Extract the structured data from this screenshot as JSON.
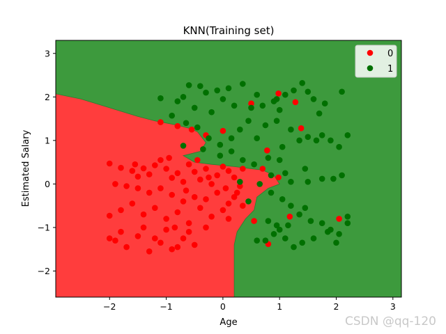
{
  "chart_data": {
    "type": "scatter",
    "title": "KNN(Training set)",
    "xlabel": "Age",
    "ylabel": "Estimated Salary",
    "xlim": [
      -2.95,
      3.15
    ],
    "ylim": [
      -2.6,
      3.3
    ],
    "xticks": [
      -2,
      -1,
      0,
      1,
      2,
      3
    ],
    "yticks": [
      -2,
      -1,
      0,
      1,
      2,
      3
    ],
    "grid": false,
    "legend_position": "top-right",
    "region_colors": {
      "0": "#ff3d3d",
      "1": "#3d9a3d"
    },
    "point_colors": {
      "0": "#ff0000",
      "1": "#007000"
    },
    "boundary": [
      [
        -2.95,
        2.07
      ],
      [
        -2.5,
        1.95
      ],
      [
        -2.0,
        1.75
      ],
      [
        -1.5,
        1.55
      ],
      [
        -1.2,
        1.45
      ],
      [
        -1.0,
        1.4
      ],
      [
        -0.8,
        1.35
      ],
      [
        -0.6,
        1.28
      ],
      [
        -0.45,
        1.2
      ],
      [
        -0.3,
        0.95
      ],
      [
        -0.4,
        0.75
      ],
      [
        -0.7,
        0.65
      ],
      [
        -0.5,
        0.5
      ],
      [
        -0.2,
        0.45
      ],
      [
        0.2,
        0.4
      ],
      [
        0.5,
        0.35
      ],
      [
        0.7,
        0.32
      ],
      [
        0.9,
        0.2
      ],
      [
        1.0,
        0.0
      ],
      [
        0.8,
        -0.1
      ],
      [
        0.6,
        -0.3
      ],
      [
        0.55,
        -0.6
      ],
      [
        0.4,
        -0.8
      ],
      [
        0.25,
        -1.1
      ],
      [
        0.2,
        -1.4
      ],
      [
        0.2,
        -2.6
      ]
    ],
    "series": [
      {
        "name": "0",
        "points": [
          [
            -2.0,
            0.47
          ],
          [
            -1.8,
            0.37
          ],
          [
            -1.6,
            0.3
          ],
          [
            -1.5,
            0.17
          ],
          [
            -1.4,
            0.36
          ],
          [
            -1.3,
            0.22
          ],
          [
            -1.2,
            0.43
          ],
          [
            -1.1,
            0.55
          ],
          [
            -1.0,
            0.35
          ],
          [
            -0.9,
            0.14
          ],
          [
            -0.8,
            0.25
          ],
          [
            -0.7,
            0.05
          ],
          [
            -0.6,
            0.45
          ],
          [
            -0.5,
            0.28
          ],
          [
            -0.4,
            0.1
          ],
          [
            -0.3,
            0.35
          ],
          [
            -0.2,
            0.0
          ],
          [
            -0.1,
            0.2
          ],
          [
            0.0,
            0.4
          ],
          [
            0.1,
            0.3
          ],
          [
            0.2,
            0.15
          ],
          [
            0.3,
            -0.05
          ],
          [
            0.35,
            0.35
          ],
          [
            -1.9,
            0.0
          ],
          [
            -1.7,
            -0.05
          ],
          [
            -1.5,
            -0.1
          ],
          [
            -1.3,
            -0.2
          ],
          [
            -1.1,
            -0.1
          ],
          [
            -0.9,
            -0.25
          ],
          [
            -0.7,
            -0.4
          ],
          [
            -0.5,
            -0.3
          ],
          [
            -0.3,
            -0.35
          ],
          [
            -0.1,
            -0.2
          ],
          [
            0.1,
            -0.45
          ],
          [
            0.2,
            -0.3
          ],
          [
            0.35,
            -0.5
          ],
          [
            -2.0,
            -0.73
          ],
          [
            -1.8,
            -0.6
          ],
          [
            -1.6,
            -0.45
          ],
          [
            -1.4,
            -0.7
          ],
          [
            -1.2,
            -0.55
          ],
          [
            -1.0,
            -0.8
          ],
          [
            -0.8,
            -0.65
          ],
          [
            -0.6,
            -0.9
          ],
          [
            -0.4,
            -0.55
          ],
          [
            -0.2,
            -0.75
          ],
          [
            0.0,
            -0.6
          ],
          [
            0.1,
            -0.8
          ],
          [
            -1.9,
            -1.3
          ],
          [
            -1.7,
            -1.45
          ],
          [
            -1.5,
            -1.2
          ],
          [
            -1.3,
            -1.55
          ],
          [
            -1.1,
            -1.35
          ],
          [
            -0.9,
            -1.5
          ],
          [
            -0.7,
            -1.25
          ],
          [
            -0.5,
            -1.4
          ],
          [
            -0.3,
            -1.0
          ],
          [
            -1.8,
            -1.1
          ],
          [
            -1.4,
            -1.0
          ],
          [
            -1.0,
            -1.05
          ],
          [
            -0.6,
            -1.1
          ],
          [
            -2.0,
            -1.25
          ],
          [
            -1.2,
            -1.25
          ],
          [
            -0.8,
            -1.45
          ],
          [
            -1.1,
            1.42
          ],
          [
            -0.8,
            1.33
          ],
          [
            -0.55,
            1.25
          ],
          [
            -0.3,
            1.12
          ],
          [
            0.0,
            1.22
          ],
          [
            0.5,
            1.85
          ],
          [
            0.98,
            2.08
          ],
          [
            1.28,
            1.88
          ],
          [
            1.38,
            1.28
          ],
          [
            0.78,
            0.77
          ],
          [
            0.7,
            0.35
          ],
          [
            0.98,
            0.15
          ],
          [
            0.55,
            -0.85
          ],
          [
            0.8,
            -1.38
          ],
          [
            1.18,
            -0.75
          ],
          [
            2.05,
            -0.8
          ],
          [
            -0.45,
            0.55
          ],
          [
            -0.25,
            0.15
          ],
          [
            0.05,
            -0.1
          ],
          [
            -1.55,
            0.45
          ],
          [
            -0.95,
            0.6
          ],
          [
            -0.65,
            -0.15
          ],
          [
            0.25,
            -0.2
          ],
          [
            -0.85,
            -1.0
          ]
        ]
      },
      {
        "name": "1",
        "points": [
          [
            -1.1,
            1.97
          ],
          [
            -0.9,
            1.57
          ],
          [
            -0.8,
            1.9
          ],
          [
            -0.7,
            2.0
          ],
          [
            -0.6,
            2.27
          ],
          [
            -0.5,
            1.75
          ],
          [
            -0.4,
            2.25
          ],
          [
            -0.3,
            2.1
          ],
          [
            -0.2,
            1.65
          ],
          [
            -0.1,
            2.15
          ],
          [
            0.0,
            1.95
          ],
          [
            0.1,
            2.2
          ],
          [
            0.2,
            1.8
          ],
          [
            0.35,
            2.3
          ],
          [
            0.5,
            1.75
          ],
          [
            0.6,
            2.05
          ],
          [
            0.7,
            1.8
          ],
          [
            0.9,
            1.9
          ],
          [
            1.0,
            1.7
          ],
          [
            1.1,
            2.05
          ],
          [
            1.25,
            2.15
          ],
          [
            1.4,
            2.32
          ],
          [
            1.5,
            2.12
          ],
          [
            1.6,
            1.95
          ],
          [
            1.7,
            1.62
          ],
          [
            1.8,
            1.85
          ],
          [
            2.1,
            2.12
          ],
          [
            -0.65,
            1.4
          ],
          [
            -0.45,
            1.3
          ],
          [
            -0.25,
            1.05
          ],
          [
            -0.05,
            0.9
          ],
          [
            0.15,
            1.05
          ],
          [
            0.3,
            1.25
          ],
          [
            0.45,
            1.45
          ],
          [
            0.6,
            1.05
          ],
          [
            0.75,
            1.35
          ],
          [
            0.95,
            1.45
          ],
          [
            1.05,
            0.85
          ],
          [
            1.2,
            1.25
          ],
          [
            1.35,
            1.0
          ],
          [
            1.5,
            1.08
          ],
          [
            1.65,
            1.0
          ],
          [
            1.75,
            1.12
          ],
          [
            1.9,
            1.0
          ],
          [
            2.05,
            0.85
          ],
          [
            2.2,
            1.12
          ],
          [
            -0.7,
            0.88
          ],
          [
            -0.35,
            0.8
          ],
          [
            -0.05,
            0.65
          ],
          [
            0.15,
            0.75
          ],
          [
            0.35,
            0.55
          ],
          [
            0.55,
            0.45
          ],
          [
            0.8,
            0.6
          ],
          [
            1.0,
            0.55
          ],
          [
            1.1,
            0.25
          ],
          [
            1.2,
            0.05
          ],
          [
            1.45,
            0.35
          ],
          [
            1.5,
            0.05
          ],
          [
            1.75,
            0.12
          ],
          [
            1.95,
            0.12
          ],
          [
            2.1,
            0.2
          ],
          [
            1.05,
            -0.35
          ],
          [
            1.2,
            -0.5
          ],
          [
            1.35,
            -0.7
          ],
          [
            1.55,
            -0.85
          ],
          [
            1.75,
            -0.9
          ],
          [
            1.9,
            -1.05
          ],
          [
            2.05,
            -1.15
          ],
          [
            2.2,
            -0.75
          ],
          [
            0.75,
            -1.3
          ],
          [
            0.9,
            -1.15
          ],
          [
            1.0,
            -1.05
          ],
          [
            1.1,
            -1.25
          ],
          [
            1.25,
            -1.45
          ],
          [
            1.4,
            -1.35
          ],
          [
            1.6,
            -1.25
          ],
          [
            1.85,
            -1.1
          ],
          [
            2.0,
            -1.35
          ],
          [
            0.8,
            -0.85
          ],
          [
            0.95,
            -0.95
          ],
          [
            1.15,
            -0.95
          ],
          [
            0.6,
            -1.3
          ],
          [
            0.45,
            -0.4
          ],
          [
            0.65,
            0.0
          ],
          [
            0.85,
            -0.2
          ],
          [
            2.2,
            -0.9
          ],
          [
            1.45,
            -0.55
          ],
          [
            0.3,
            0.05
          ],
          [
            0.95,
            1.95
          ],
          [
            0.85,
            0.2
          ]
        ]
      }
    ]
  },
  "watermark": "CSDN @qq-120"
}
